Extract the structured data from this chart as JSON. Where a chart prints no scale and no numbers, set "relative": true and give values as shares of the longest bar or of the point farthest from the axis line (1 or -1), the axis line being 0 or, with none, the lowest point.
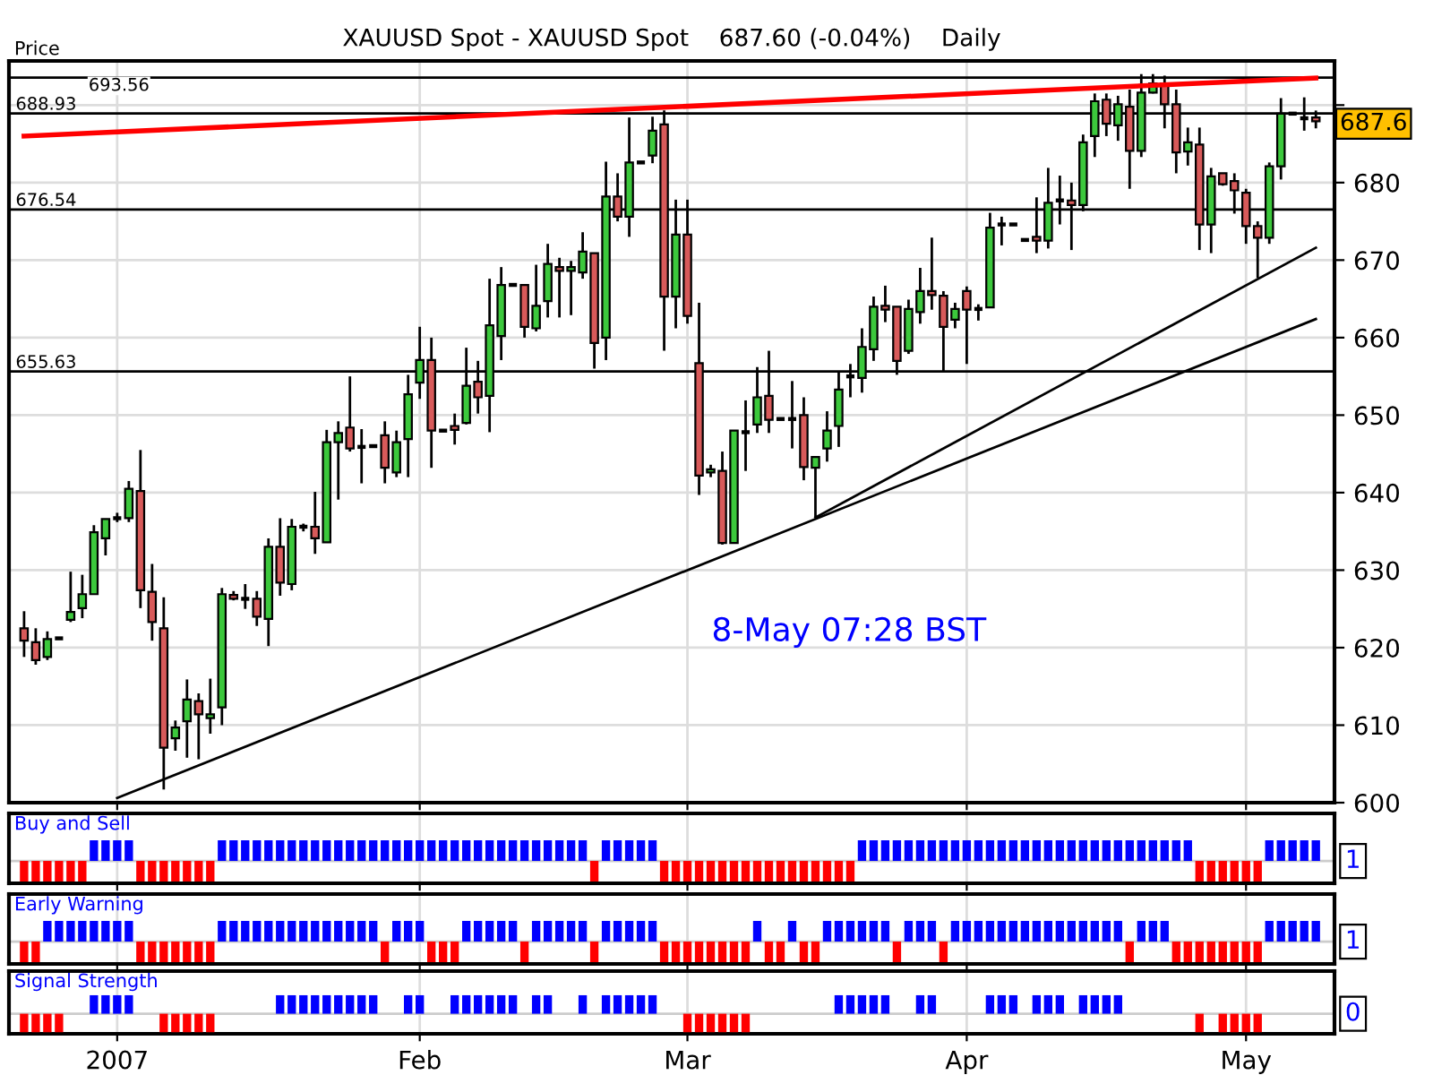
{
  "chart_data": [
    {
      "type": "candlestick",
      "title": "XAUUSD Spot - XAUUSD Spot    687.60 (-0.04%)    Daily",
      "ylabel": "Price",
      "ohlc": [
        [
          622.5,
          624.7,
          618.8,
          620.9
        ],
        [
          620.7,
          622.5,
          617.8,
          618.4
        ],
        [
          618.8,
          622.1,
          618.4,
          621.1
        ],
        [
          621.2,
          621.2,
          621.2,
          621.2
        ],
        [
          623.6,
          629.8,
          623.3,
          624.6
        ],
        [
          625.1,
          629.4,
          623.8,
          626.9
        ],
        [
          626.9,
          635.8,
          626.9,
          634.9
        ],
        [
          634.1,
          636.6,
          631.9,
          636.6
        ],
        [
          636.7,
          637.4,
          636.2,
          636.7
        ],
        [
          636.7,
          641.5,
          636.2,
          640.5
        ],
        [
          640.2,
          645.5,
          625.1,
          627.4
        ],
        [
          627.2,
          630.8,
          620.9,
          623.3
        ],
        [
          622.5,
          626.5,
          601.7,
          607.1
        ],
        [
          608.3,
          610.6,
          606.7,
          609.7
        ],
        [
          610.5,
          615.9,
          605.8,
          613.3
        ],
        [
          613.1,
          614.1,
          605.6,
          611.4
        ],
        [
          610.9,
          616.0,
          608.9,
          611.4
        ],
        [
          612.3,
          627.7,
          610.0,
          626.9
        ],
        [
          626.8,
          627.3,
          626.1,
          626.3
        ],
        [
          626.3,
          628.2,
          625.0,
          626.3
        ],
        [
          626.3,
          627.3,
          622.8,
          624.0
        ],
        [
          623.7,
          634.1,
          620.2,
          633.0
        ],
        [
          633.0,
          636.7,
          626.7,
          628.4
        ],
        [
          628.2,
          636.6,
          627.4,
          635.6
        ],
        [
          635.6,
          636.0,
          635.0,
          635.6
        ],
        [
          635.6,
          640.1,
          632.1,
          634.1
        ],
        [
          633.6,
          648.1,
          633.6,
          646.5
        ],
        [
          646.5,
          649.2,
          639.1,
          647.7
        ],
        [
          648.4,
          655.0,
          645.3,
          645.7
        ],
        [
          645.9,
          648.2,
          641.2,
          645.9
        ],
        [
          646.0,
          646.0,
          646.0,
          646.0
        ],
        [
          647.4,
          649.2,
          641.2,
          643.2
        ],
        [
          642.6,
          648.0,
          642.0,
          646.5
        ],
        [
          646.9,
          655.2,
          642.0,
          652.7
        ],
        [
          654.2,
          661.4,
          652.1,
          657.1
        ],
        [
          657.1,
          660.0,
          643.2,
          648.0
        ],
        [
          648.0,
          648.0,
          648.0,
          648.0
        ],
        [
          648.6,
          650.2,
          646.2,
          648.1
        ],
        [
          649.0,
          658.7,
          648.8,
          653.8
        ],
        [
          654.3,
          657.0,
          650.2,
          652.3
        ],
        [
          652.5,
          667.6,
          647.8,
          661.6
        ],
        [
          660.2,
          669.1,
          657.1,
          666.8
        ],
        [
          666.8,
          666.8,
          666.8,
          666.8
        ],
        [
          666.8,
          666.8,
          660.0,
          661.4
        ],
        [
          661.2,
          669.4,
          660.8,
          664.1
        ],
        [
          664.7,
          672.1,
          662.6,
          669.5
        ],
        [
          669.1,
          670.3,
          662.6,
          668.6
        ],
        [
          668.6,
          669.9,
          662.9,
          669.1
        ],
        [
          668.4,
          673.6,
          667.6,
          671.1
        ],
        [
          670.9,
          670.9,
          656.0,
          659.3
        ],
        [
          660.0,
          682.7,
          657.1,
          678.2
        ],
        [
          678.2,
          681.2,
          675.0,
          675.6
        ],
        [
          675.6,
          688.4,
          673.0,
          682.6
        ],
        [
          682.6,
          682.6,
          682.6,
          682.6
        ],
        [
          683.5,
          688.5,
          682.5,
          686.7
        ],
        [
          687.5,
          689.3,
          658.3,
          665.3
        ],
        [
          665.3,
          677.8,
          661.2,
          673.3
        ],
        [
          673.3,
          677.8,
          661.8,
          662.8
        ],
        [
          656.7,
          664.5,
          639.7,
          642.2
        ],
        [
          642.6,
          643.6,
          642.0,
          643.0
        ],
        [
          642.8,
          645.3,
          633.3,
          633.5
        ],
        [
          633.5,
          648.0,
          633.5,
          648.0
        ],
        [
          647.8,
          651.9,
          642.8,
          647.8
        ],
        [
          648.8,
          656.2,
          647.7,
          652.3
        ],
        [
          652.5,
          658.3,
          647.7,
          649.4
        ],
        [
          649.5,
          649.5,
          649.5,
          649.5
        ],
        [
          649.5,
          654.4,
          645.7,
          649.5
        ],
        [
          650.0,
          652.3,
          641.6,
          643.3
        ],
        [
          643.2,
          644.6,
          636.8,
          644.6
        ],
        [
          645.7,
          650.5,
          644.0,
          648.0
        ],
        [
          648.6,
          655.6,
          645.9,
          653.3
        ],
        [
          655.0,
          656.6,
          652.3,
          655.0
        ],
        [
          654.8,
          661.2,
          652.9,
          658.8
        ],
        [
          658.5,
          665.3,
          657.0,
          664.0
        ],
        [
          664.1,
          666.7,
          662.0,
          663.6
        ],
        [
          664.0,
          664.0,
          655.2,
          657.0
        ],
        [
          658.3,
          664.9,
          657.9,
          663.7
        ],
        [
          663.3,
          669.0,
          661.8,
          666.0
        ],
        [
          666.0,
          672.9,
          663.6,
          665.5
        ],
        [
          665.4,
          666.0,
          655.6,
          661.4
        ],
        [
          662.3,
          664.5,
          661.2,
          663.7
        ],
        [
          666.0,
          666.6,
          656.6,
          663.6
        ],
        [
          663.7,
          664.3,
          662.2,
          663.7
        ],
        [
          663.9,
          676.1,
          663.9,
          674.2
        ],
        [
          674.6,
          675.6,
          671.9,
          674.6
        ],
        [
          674.6,
          674.6,
          674.6,
          674.6
        ],
        [
          672.6,
          672.6,
          672.6,
          672.6
        ],
        [
          673.0,
          678.1,
          670.9,
          672.5
        ],
        [
          672.5,
          681.9,
          671.5,
          677.4
        ],
        [
          677.7,
          680.9,
          674.6,
          677.7
        ],
        [
          677.7,
          680.0,
          671.3,
          677.1
        ],
        [
          677.1,
          686.2,
          676.3,
          685.2
        ],
        [
          686.0,
          691.5,
          683.3,
          690.5
        ],
        [
          690.7,
          691.5,
          686.0,
          687.6
        ],
        [
          687.4,
          691.2,
          685.4,
          690.1
        ],
        [
          689.8,
          692.0,
          679.2,
          684.1
        ],
        [
          684.1,
          694.0,
          683.3,
          691.6
        ],
        [
          691.6,
          694.0,
          691.5,
          692.8
        ],
        [
          692.8,
          693.8,
          687.0,
          690.1
        ],
        [
          690.1,
          692.0,
          681.2,
          683.9
        ],
        [
          684.0,
          687.1,
          682.2,
          685.2
        ],
        [
          684.9,
          687.1,
          671.3,
          674.6
        ],
        [
          674.6,
          681.9,
          670.9,
          680.8
        ],
        [
          681.2,
          681.2,
          679.6,
          679.8
        ],
        [
          680.2,
          681.2,
          676.0,
          679.0
        ],
        [
          678.7,
          679.2,
          672.1,
          674.4
        ],
        [
          674.4,
          675.0,
          667.7,
          672.9
        ],
        [
          672.9,
          682.6,
          672.1,
          682.1
        ],
        [
          682.1,
          690.9,
          680.4,
          688.9
        ],
        [
          688.9,
          688.9,
          688.9,
          688.9
        ],
        [
          688.3,
          691.0,
          686.7,
          688.3
        ],
        [
          688.4,
          689.3,
          687.0,
          687.9
        ]
      ],
      "colors": [
        "#d85a5a",
        "#d85a5a",
        "#3cc83c",
        "#000000",
        "#3cc83c",
        "#3cc83c",
        "#3cc83c",
        "#3cc83c",
        "#000000",
        "#3cc83c",
        "#d85a5a",
        "#d85a5a",
        "#d85a5a",
        "#3cc83c",
        "#3cc83c",
        "#d85a5a",
        "#3cc83c",
        "#3cc83c",
        "#d85a5a",
        "#000000",
        "#d85a5a",
        "#3cc83c",
        "#d85a5a",
        "#3cc83c",
        "#000000",
        "#d85a5a",
        "#3cc83c",
        "#3cc83c",
        "#d85a5a",
        "#000000",
        "#000000",
        "#d85a5a",
        "#3cc83c",
        "#3cc83c",
        "#3cc83c",
        "#d85a5a",
        "#000000",
        "#d85a5a",
        "#3cc83c",
        "#d85a5a",
        "#3cc83c",
        "#3cc83c",
        "#000000",
        "#d85a5a",
        "#3cc83c",
        "#3cc83c",
        "#d85a5a",
        "#3cc83c",
        "#3cc83c",
        "#d85a5a",
        "#3cc83c",
        "#d85a5a",
        "#3cc83c",
        "#000000",
        "#3cc83c",
        "#d85a5a",
        "#3cc83c",
        "#d85a5a",
        "#d85a5a",
        "#3cc83c",
        "#d85a5a",
        "#3cc83c",
        "#000000",
        "#3cc83c",
        "#d85a5a",
        "#000000",
        "#000000",
        "#d85a5a",
        "#3cc83c",
        "#3cc83c",
        "#3cc83c",
        "#000000",
        "#3cc83c",
        "#3cc83c",
        "#d85a5a",
        "#d85a5a",
        "#3cc83c",
        "#3cc83c",
        "#d85a5a",
        "#d85a5a",
        "#3cc83c",
        "#d85a5a",
        "#000000",
        "#3cc83c",
        "#000000",
        "#000000",
        "#000000",
        "#d85a5a",
        "#3cc83c",
        "#000000",
        "#d85a5a",
        "#3cc83c",
        "#3cc83c",
        "#d85a5a",
        "#3cc83c",
        "#d85a5a",
        "#3cc83c",
        "#3cc83c",
        "#d85a5a",
        "#d85a5a",
        "#3cc83c",
        "#d85a5a",
        "#3cc83c",
        "#d85a5a",
        "#d85a5a",
        "#d85a5a",
        "#d85a5a",
        "#3cc83c",
        "#3cc83c",
        "#000000",
        "#000000",
        "#d85a5a"
      ],
      "series": [
        {
          "type": "line",
          "color": "#ff0000",
          "values": [
            686.0,
            null,
            null,
            null,
            null,
            null,
            null,
            null,
            null,
            null,
            null,
            null,
            null,
            null,
            null,
            null,
            null,
            null,
            null,
            null,
            null,
            null,
            null,
            null,
            null,
            null,
            null,
            null,
            null,
            null,
            null,
            null,
            null,
            null,
            null,
            null,
            null,
            null,
            null,
            null,
            null,
            null,
            null,
            null,
            null,
            null,
            null,
            null,
            null,
            null,
            null,
            null,
            null,
            null,
            null,
            null,
            null,
            null,
            null,
            null,
            null,
            null,
            null,
            null,
            null,
            null,
            null,
            null,
            null,
            null,
            null,
            null,
            null,
            null,
            null,
            null,
            null,
            null,
            null,
            null,
            null,
            null,
            null,
            null,
            null,
            null,
            null,
            null,
            null,
            null,
            null,
            null,
            null,
            null,
            null,
            null,
            null,
            null,
            null,
            null,
            null,
            null,
            null,
            null,
            null,
            null,
            null,
            null,
            null,
            null,
            null,
            693.5
          ]
        },
        {
          "type": "line",
          "color": "#000000",
          "values": [
            null,
            null,
            null,
            null,
            null,
            null,
            null,
            null,
            600.6,
            null,
            null,
            null,
            null,
            null,
            null,
            null,
            null,
            null,
            null,
            null,
            null,
            null,
            null,
            null,
            null,
            null,
            null,
            null,
            null,
            null,
            null,
            null,
            null,
            null,
            null,
            null,
            null,
            null,
            null,
            null,
            null,
            null,
            null,
            null,
            null,
            null,
            null,
            null,
            null,
            null,
            null,
            null,
            null,
            null,
            null,
            null,
            null,
            null,
            null,
            null,
            null,
            null,
            null,
            null,
            null,
            null,
            null,
            null,
            null,
            null,
            null,
            null,
            null,
            null,
            null,
            null,
            null,
            null,
            null,
            null,
            null,
            null,
            null,
            null,
            null,
            null,
            null,
            null,
            null,
            null,
            null,
            null,
            null,
            null,
            null,
            null,
            null,
            null,
            null,
            null,
            null,
            null,
            null,
            null,
            null,
            null,
            null,
            null,
            null,
            null,
            null,
            662.4
          ]
        },
        {
          "type": "line",
          "color": "#000000",
          "values": [
            null,
            null,
            null,
            null,
            null,
            null,
            null,
            null,
            null,
            null,
            null,
            null,
            null,
            null,
            null,
            null,
            null,
            null,
            null,
            null,
            null,
            null,
            null,
            null,
            null,
            null,
            null,
            null,
            null,
            null,
            null,
            null,
            null,
            null,
            null,
            null,
            null,
            null,
            null,
            null,
            null,
            null,
            null,
            null,
            null,
            null,
            null,
            null,
            null,
            null,
            null,
            null,
            null,
            null,
            null,
            null,
            null,
            null,
            null,
            null,
            null,
            null,
            null,
            null,
            null,
            null,
            null,
            null,
            636.8,
            null,
            null,
            null,
            null,
            null,
            null,
            null,
            null,
            null,
            null,
            null,
            null,
            null,
            null,
            null,
            null,
            null,
            null,
            null,
            null,
            null,
            null,
            null,
            null,
            null,
            null,
            null,
            null,
            null,
            null,
            null,
            null,
            null,
            null,
            null,
            null,
            null,
            null,
            null,
            null,
            null,
            null,
            671.6
          ]
        }
      ],
      "ylim": [
        600,
        695.7
      ],
      "yticks": [
        600,
        610,
        620,
        630,
        640,
        650,
        660,
        670,
        680,
        {
          "value": 690,
          "label": null
        }
      ],
      "ref_lines": [
        {
          "axis": "y",
          "value": 693.56,
          "label": "693.56",
          "color": "#000000"
        },
        {
          "axis": "y",
          "value": 688.93,
          "label": "688.93",
          "color": "#000000"
        },
        {
          "axis": "y",
          "value": 676.54,
          "label": "676.54",
          "color": "#000000"
        },
        {
          "axis": "y",
          "value": 655.63,
          "label": "655.63",
          "color": "#000000"
        }
      ],
      "annotations": [
        {
          "text": "687.6",
          "y": 687.6
        },
        "8-May 07:28 BST"
      ],
      "grid": true,
      "tick_labels": "y"
    },
    {
      "type": "bar",
      "relative": true,
      "title": "Buy and Sell",
      "series": [
        {
          "color": "#0000ff",
          "values": [
            null,
            null,
            null,
            null,
            null,
            null,
            1,
            1,
            1,
            1,
            null,
            null,
            null,
            null,
            null,
            null,
            null,
            1,
            1,
            1,
            1,
            1,
            1,
            1,
            1,
            1,
            1,
            1,
            1,
            1,
            1,
            1,
            1,
            1,
            1,
            1,
            1,
            1,
            1,
            1,
            1,
            1,
            1,
            1,
            1,
            1,
            1,
            1,
            1,
            null,
            1,
            1,
            1,
            1,
            1,
            null,
            null,
            null,
            null,
            null,
            null,
            null,
            null,
            null,
            null,
            null,
            null,
            null,
            null,
            null,
            null,
            null,
            1,
            1,
            1,
            1,
            1,
            1,
            1,
            1,
            1,
            1,
            1,
            1,
            1,
            1,
            1,
            1,
            1,
            1,
            1,
            1,
            1,
            1,
            1,
            1,
            1,
            1,
            1,
            1,
            1,
            null,
            null,
            null,
            null,
            null,
            null,
            1,
            1,
            1,
            1,
            1
          ]
        },
        {
          "color": "#ff0000",
          "values": [
            -1,
            -1,
            -1,
            -1,
            -1,
            -1,
            null,
            null,
            null,
            null,
            -1,
            -1,
            -1,
            -1,
            -1,
            -1,
            -1,
            null,
            null,
            null,
            null,
            null,
            null,
            null,
            null,
            null,
            null,
            null,
            null,
            null,
            null,
            null,
            null,
            null,
            null,
            null,
            null,
            null,
            null,
            null,
            null,
            null,
            null,
            null,
            null,
            null,
            null,
            null,
            null,
            -1,
            null,
            null,
            null,
            null,
            null,
            -1,
            -1,
            -1,
            -1,
            -1,
            -1,
            -1,
            -1,
            -1,
            -1,
            -1,
            -1,
            -1,
            -1,
            -1,
            -1,
            -1,
            null,
            null,
            null,
            null,
            null,
            null,
            null,
            null,
            null,
            null,
            null,
            null,
            null,
            null,
            null,
            null,
            null,
            null,
            null,
            null,
            null,
            null,
            null,
            null,
            null,
            null,
            null,
            null,
            null,
            -1,
            -1,
            -1,
            -1,
            -1,
            -1,
            null,
            null,
            null,
            null,
            null
          ]
        }
      ],
      "annotations": [
        "1"
      ],
      "grid": "x",
      "tick_labels": false
    },
    {
      "type": "bar",
      "relative": true,
      "title": "Early Warning",
      "series": [
        {
          "color": "#0000ff",
          "values": [
            null,
            null,
            1,
            1,
            1,
            1,
            1,
            1,
            1,
            1,
            null,
            null,
            null,
            null,
            null,
            null,
            null,
            1,
            1,
            1,
            1,
            1,
            1,
            1,
            1,
            1,
            1,
            1,
            1,
            1,
            1,
            null,
            1,
            1,
            1,
            null,
            null,
            null,
            1,
            1,
            1,
            1,
            1,
            null,
            1,
            1,
            1,
            1,
            1,
            null,
            1,
            1,
            1,
            1,
            1,
            null,
            null,
            null,
            null,
            null,
            null,
            null,
            null,
            1,
            null,
            null,
            1,
            null,
            null,
            1,
            1,
            1,
            1,
            1,
            1,
            null,
            1,
            1,
            1,
            null,
            1,
            1,
            1,
            1,
            1,
            1,
            1,
            1,
            1,
            1,
            1,
            1,
            1,
            1,
            1,
            null,
            1,
            1,
            1,
            null,
            null,
            null,
            null,
            null,
            null,
            null,
            null,
            1,
            1,
            1,
            1,
            1
          ]
        },
        {
          "color": "#ff0000",
          "values": [
            -1,
            -1,
            null,
            null,
            null,
            null,
            null,
            null,
            null,
            null,
            -1,
            -1,
            -1,
            -1,
            -1,
            -1,
            -1,
            null,
            null,
            null,
            null,
            null,
            null,
            null,
            null,
            null,
            null,
            null,
            null,
            null,
            null,
            -1,
            null,
            null,
            null,
            -1,
            -1,
            -1,
            null,
            null,
            null,
            null,
            null,
            -1,
            null,
            null,
            null,
            null,
            null,
            -1,
            null,
            null,
            null,
            null,
            null,
            -1,
            -1,
            -1,
            -1,
            -1,
            -1,
            -1,
            -1,
            null,
            -1,
            -1,
            null,
            -1,
            -1,
            null,
            null,
            null,
            null,
            null,
            null,
            -1,
            null,
            null,
            null,
            -1,
            null,
            null,
            null,
            null,
            null,
            null,
            null,
            null,
            null,
            null,
            null,
            null,
            null,
            null,
            null,
            -1,
            null,
            null,
            null,
            -1,
            -1,
            -1,
            -1,
            -1,
            -1,
            -1,
            -1,
            null,
            null,
            null,
            null,
            null
          ]
        }
      ],
      "annotations": [
        "1"
      ],
      "grid": "x",
      "tick_labels": false
    },
    {
      "type": "bar",
      "relative": true,
      "title": "Signal Strength",
      "categories": [
        null,
        null,
        null,
        null,
        null,
        null,
        null,
        null,
        "2007",
        null,
        null,
        null,
        null,
        null,
        null,
        null,
        null,
        null,
        null,
        null,
        null,
        null,
        null,
        null,
        null,
        null,
        null,
        null,
        null,
        null,
        null,
        null,
        null,
        null,
        "Feb",
        null,
        null,
        null,
        null,
        null,
        null,
        null,
        null,
        null,
        null,
        null,
        null,
        null,
        null,
        null,
        null,
        null,
        null,
        null,
        null,
        null,
        null,
        "Mar",
        null,
        null,
        null,
        null,
        null,
        null,
        null,
        null,
        null,
        null,
        null,
        null,
        null,
        null,
        null,
        null,
        null,
        null,
        null,
        null,
        null,
        null,
        null,
        "Apr",
        null,
        null,
        null,
        null,
        null,
        null,
        null,
        null,
        null,
        null,
        null,
        null,
        null,
        null,
        null,
        null,
        null,
        null,
        null,
        null,
        null,
        null,
        null,
        "May",
        null,
        null,
        null,
        null,
        null,
        null
      ],
      "series": [
        {
          "color": "#0000ff",
          "values": [
            null,
            null,
            null,
            null,
            null,
            null,
            1,
            1,
            1,
            1,
            null,
            null,
            null,
            null,
            null,
            null,
            null,
            null,
            null,
            null,
            null,
            null,
            1,
            1,
            1,
            1,
            1,
            1,
            1,
            1,
            1,
            null,
            null,
            1,
            1,
            null,
            null,
            1,
            1,
            1,
            1,
            1,
            1,
            null,
            1,
            1,
            null,
            null,
            1,
            null,
            1,
            1,
            1,
            1,
            1,
            null,
            null,
            null,
            null,
            null,
            null,
            null,
            null,
            null,
            null,
            null,
            null,
            null,
            null,
            null,
            1,
            1,
            1,
            1,
            1,
            null,
            null,
            1,
            1,
            null,
            null,
            null,
            null,
            1,
            1,
            1,
            null,
            1,
            1,
            1,
            null,
            1,
            1,
            1,
            1,
            null,
            null,
            null,
            null,
            null,
            null,
            null,
            null,
            null,
            null,
            null,
            null,
            null,
            null,
            null,
            null,
            null
          ]
        },
        {
          "color": "#ff0000",
          "values": [
            -1,
            -1,
            -1,
            -1,
            null,
            null,
            null,
            null,
            null,
            null,
            null,
            null,
            -1,
            -1,
            -1,
            -1,
            -1,
            null,
            null,
            null,
            null,
            null,
            null,
            null,
            null,
            null,
            null,
            null,
            null,
            null,
            null,
            null,
            null,
            null,
            null,
            null,
            null,
            null,
            null,
            null,
            null,
            null,
            null,
            null,
            null,
            null,
            null,
            null,
            null,
            null,
            null,
            null,
            null,
            null,
            null,
            null,
            null,
            -1,
            -1,
            -1,
            -1,
            -1,
            -1,
            null,
            null,
            null,
            null,
            null,
            null,
            null,
            null,
            null,
            null,
            null,
            null,
            null,
            null,
            null,
            null,
            null,
            null,
            null,
            null,
            null,
            null,
            null,
            null,
            null,
            null,
            null,
            null,
            null,
            null,
            null,
            null,
            null,
            null,
            null,
            null,
            null,
            null,
            -1,
            null,
            -1,
            -1,
            -1,
            -1,
            null,
            null,
            null,
            null,
            null
          ]
        }
      ],
      "annotations": [
        "0"
      ],
      "grid": "x",
      "tick_labels": "x"
    }
  ]
}
